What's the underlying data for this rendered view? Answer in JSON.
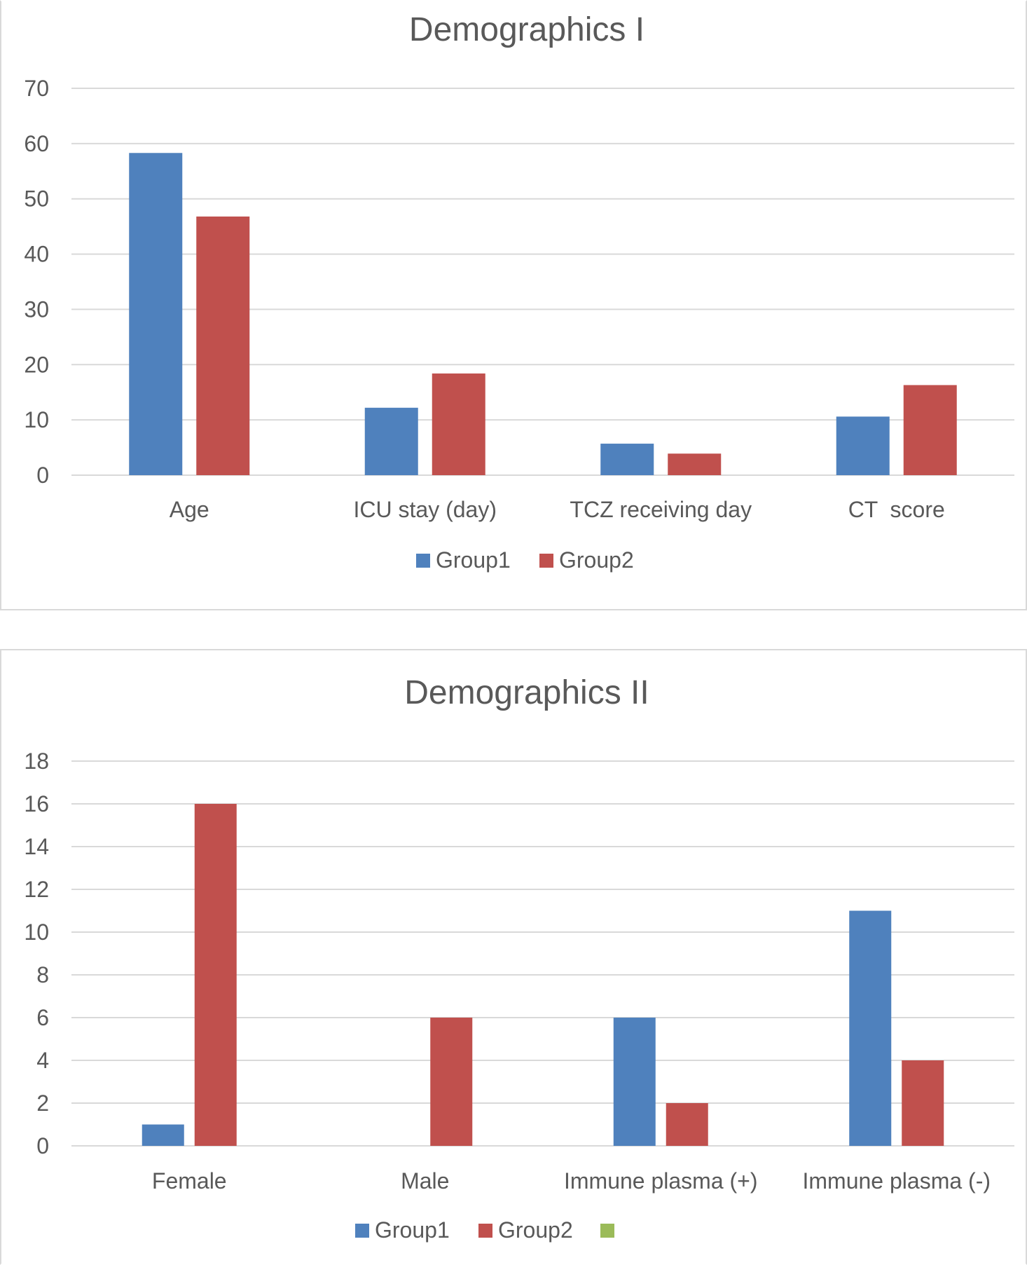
{
  "chart_data": [
    {
      "type": "bar",
      "title": "Demographics I",
      "categories": [
        "Age",
        "ICU stay (day)",
        "TCZ receiving day",
        "CT  score"
      ],
      "series": [
        {
          "name": "Group1",
          "color": "#4f81bd",
          "values": [
            58.3,
            12.2,
            5.7,
            10.6
          ]
        },
        {
          "name": "Group2",
          "color": "#c0504d",
          "values": [
            46.8,
            18.4,
            3.9,
            16.3
          ]
        }
      ],
      "ylim": [
        0,
        70
      ],
      "yticks": [
        "0",
        "10",
        "20",
        "30",
        "40",
        "50",
        "60",
        "70"
      ],
      "grid": true,
      "legend": {
        "position": "bottom",
        "entries": [
          "Group1",
          "Group2"
        ]
      }
    },
    {
      "type": "bar",
      "title": "Demographics II",
      "categories": [
        "Female",
        "Male",
        "Immune plasma (+)",
        "Immune plasma (-)"
      ],
      "series": [
        {
          "name": "Group1",
          "color": "#4f81bd",
          "values": [
            1,
            0,
            6,
            11
          ]
        },
        {
          "name": "Group2",
          "color": "#c0504d",
          "values": [
            16,
            6,
            2,
            4
          ]
        },
        {
          "name": "",
          "color": "#9bbb59",
          "values": [
            0,
            0,
            0,
            0
          ]
        }
      ],
      "ylim": [
        0,
        18
      ],
      "yticks": [
        "0",
        "2",
        "4",
        "6",
        "8",
        "10",
        "12",
        "14",
        "16",
        "18"
      ],
      "grid": true,
      "legend": {
        "position": "bottom",
        "entries": [
          "Group1",
          "Group2",
          ""
        ]
      }
    }
  ]
}
